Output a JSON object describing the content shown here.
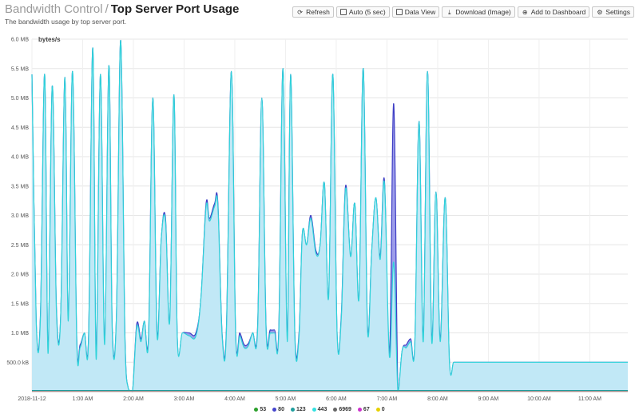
{
  "header": {
    "breadcrumb": "Bandwidth Control",
    "separator": "/",
    "title": "Top Server Port Usage",
    "subtitle": "The bandwidth usage by top server port."
  },
  "toolbar": {
    "refresh": "Refresh",
    "auto": "Auto (5 sec)",
    "data_view": "Data View",
    "download": "Download (Image)",
    "add_dashboard": "Add to Dashboard",
    "settings": "Settings"
  },
  "chart_data": {
    "type": "area",
    "ylabel": "bytes/s",
    "ylim": [
      0,
      6.0
    ],
    "y_unit": "MB",
    "y_ticks": [
      {
        "v": 0.5,
        "label": "500.0 kB"
      },
      {
        "v": 1.0,
        "label": "1.0 MB"
      },
      {
        "v": 1.5,
        "label": "1.5 MB"
      },
      {
        "v": 2.0,
        "label": "2.0 MB"
      },
      {
        "v": 2.5,
        "label": "2.5 MB"
      },
      {
        "v": 3.0,
        "label": "3.0 MB"
      },
      {
        "v": 3.5,
        "label": "3.5 MB"
      },
      {
        "v": 4.0,
        "label": "4.0 MB"
      },
      {
        "v": 4.5,
        "label": "4.5 MB"
      },
      {
        "v": 5.0,
        "label": "5.0 MB"
      },
      {
        "v": 5.5,
        "label": "5.5 MB"
      },
      {
        "v": 6.0,
        "label": "6.0 MB"
      }
    ],
    "xlim": [
      0,
      705
    ],
    "x_ticks": [
      {
        "v": 0,
        "label": "2018-11-12"
      },
      {
        "v": 60,
        "label": "1:00 AM"
      },
      {
        "v": 120,
        "label": "2:00 AM"
      },
      {
        "v": 180,
        "label": "3:00 AM"
      },
      {
        "v": 240,
        "label": "4:00 AM"
      },
      {
        "v": 300,
        "label": "5:00 AM"
      },
      {
        "v": 360,
        "label": "6:00 AM"
      },
      {
        "v": 420,
        "label": "7:00 AM"
      },
      {
        "v": 480,
        "label": "8:00 AM"
      },
      {
        "v": 540,
        "label": "9:00 AM"
      },
      {
        "v": 600,
        "label": "10:00 AM"
      },
      {
        "v": 660,
        "label": "11:00 AM"
      }
    ],
    "series": [
      {
        "name": "53",
        "color": "#2ca02c",
        "x": [
          0,
          705
        ],
        "values": [
          0.01,
          0.01
        ]
      },
      {
        "name": "80",
        "color": "#4444cc",
        "x": [
          0,
          5,
          10,
          15,
          19,
          24,
          29,
          34,
          39,
          43,
          48,
          53,
          57,
          62,
          67,
          72,
          76,
          81,
          86,
          91,
          95,
          100,
          105,
          110,
          114,
          119,
          124,
          129,
          133,
          138,
          143,
          148,
          153,
          158,
          163,
          168,
          172,
          178,
          186,
          194,
          200,
          206,
          210,
          216,
          220,
          225,
          230,
          236,
          241,
          246,
          251,
          256,
          261,
          267,
          272,
          277,
          282,
          287,
          292,
          297,
          302,
          306,
          311,
          316,
          320,
          325,
          330,
          336,
          341,
          346,
          351,
          356,
          361,
          366,
          371,
          377,
          382,
          387,
          392,
          397,
          402,
          407,
          412,
          417,
          423,
          428,
          433,
          438,
          443,
          448,
          453,
          458,
          463,
          468,
          473,
          478,
          483,
          489,
          494,
          499,
          504,
          509,
          514,
          519,
          524,
          529,
          535,
          540,
          545,
          550,
          555,
          560,
          565,
          570,
          575,
          580,
          585,
          591,
          596,
          601,
          606,
          611,
          616,
          621,
          626,
          631,
          637,
          642,
          647,
          652,
          657,
          662,
          667,
          672,
          677,
          682,
          687,
          692,
          697,
          705
        ],
        "values": [
          5.4,
          1.2,
          1.3,
          5.4,
          0.7,
          5.2,
          1.4,
          1.3,
          5.35,
          1.2,
          5.45,
          0.9,
          0.8,
          1.0,
          0.95,
          5.85,
          0.6,
          5.4,
          0.8,
          5.55,
          1.1,
          1.3,
          5.98,
          0.95,
          0.05,
          0.0,
          1.15,
          0.9,
          1.2,
          0.95,
          5.0,
          1.0,
          2.6,
          2.95,
          1.2,
          5.05,
          0.9,
          1.0,
          1.0,
          1.0,
          1.6,
          3.2,
          2.95,
          3.2,
          3.2,
          0.98,
          1.05,
          5.45,
          1.0,
          1.0,
          0.8,
          0.82,
          1.0,
          1.1,
          5.0,
          1.1,
          1.05,
          1.05,
          1.05,
          5.5,
          0.9,
          5.4,
          1.0,
          1.0,
          2.7,
          2.5,
          3.0,
          2.4,
          2.5,
          3.55,
          1.6,
          5.4,
          1.0,
          1.3,
          3.5,
          2.3,
          3.2,
          1.6,
          5.5,
          1.1,
          2.4,
          3.3,
          2.3,
          3.6,
          0.6,
          4.9,
          0.0,
          0.7,
          0.8,
          0.9,
          0.8,
          4.6,
          0.9,
          5.45,
          0.9,
          3.4,
          0.9,
          3.3,
          0.5,
          0.5,
          0.5,
          0.5,
          0.5,
          0.5,
          0.5,
          0.5,
          0.5,
          0.5,
          0.5,
          0.5,
          0.5,
          0.5,
          0.5,
          0.5,
          0.5,
          0.5,
          0.5,
          0.5,
          0.5,
          0.5,
          0.5,
          0.5,
          0.5,
          0.5,
          0.5,
          0.5,
          0.5,
          0.5,
          0.5,
          0.5,
          0.5,
          0.5,
          0.5,
          0.5,
          0.5,
          0.5,
          0.5,
          0.5,
          0.5,
          0.5
        ]
      },
      {
        "name": "123",
        "color": "#1f9e9e",
        "x": [
          0,
          705
        ],
        "values": [
          0.02,
          0.02
        ]
      },
      {
        "name": "443",
        "color": "#33e0e0",
        "x": [
          0,
          5,
          10,
          15,
          19,
          24,
          29,
          34,
          39,
          43,
          48,
          53,
          57,
          62,
          67,
          72,
          76,
          81,
          86,
          91,
          95,
          100,
          105,
          110,
          114,
          119,
          124,
          129,
          133,
          138,
          143,
          148,
          153,
          158,
          163,
          168,
          172,
          178,
          186,
          194,
          200,
          206,
          210,
          216,
          220,
          225,
          230,
          236,
          241,
          246,
          251,
          256,
          261,
          267,
          272,
          277,
          282,
          287,
          292,
          297,
          302,
          306,
          311,
          316,
          320,
          325,
          330,
          336,
          341,
          346,
          351,
          356,
          361,
          366,
          371,
          377,
          382,
          387,
          392,
          397,
          402,
          407,
          412,
          417,
          423,
          428,
          433,
          438,
          443,
          448,
          453,
          458,
          463,
          468,
          473,
          478,
          483,
          489,
          494,
          499,
          504,
          509,
          514,
          519,
          524,
          529,
          535,
          540,
          545,
          550,
          555,
          560,
          565,
          570,
          575,
          580,
          585,
          591,
          596,
          601,
          606,
          611,
          616,
          621,
          626,
          631,
          637,
          642,
          647,
          652,
          657,
          662,
          667,
          672,
          677,
          682,
          687,
          692,
          697,
          705
        ],
        "values": [
          5.4,
          1.2,
          1.25,
          5.4,
          0.65,
          5.2,
          1.35,
          1.3,
          5.35,
          1.2,
          5.45,
          0.85,
          0.75,
          1.0,
          0.9,
          5.85,
          0.55,
          5.4,
          0.8,
          5.55,
          1.05,
          1.3,
          5.98,
          0.9,
          0.05,
          0.0,
          1.1,
          0.85,
          1.2,
          0.9,
          5.0,
          0.95,
          2.6,
          2.9,
          1.2,
          5.05,
          0.9,
          1.0,
          0.95,
          0.95,
          1.6,
          3.15,
          2.9,
          3.15,
          3.15,
          0.95,
          1.0,
          5.45,
          0.95,
          0.95,
          0.75,
          0.78,
          1.0,
          1.05,
          5.0,
          1.05,
          1.0,
          1.0,
          1.0,
          5.5,
          0.85,
          5.4,
          0.95,
          0.95,
          2.7,
          2.5,
          2.95,
          2.35,
          2.5,
          3.55,
          1.6,
          5.4,
          1.0,
          1.25,
          3.45,
          2.3,
          3.2,
          1.6,
          5.5,
          1.05,
          2.4,
          3.3,
          2.25,
          3.55,
          0.6,
          2.2,
          0.0,
          0.7,
          0.75,
          0.85,
          0.8,
          4.6,
          0.85,
          5.45,
          0.85,
          3.4,
          0.85,
          3.3,
          0.5,
          0.5,
          0.5,
          0.5,
          0.5,
          0.5,
          0.5,
          0.5,
          0.5,
          0.5,
          0.5,
          0.5,
          0.5,
          0.5,
          0.5,
          0.5,
          0.5,
          0.5,
          0.5,
          0.5,
          0.5,
          0.5,
          0.5,
          0.5,
          0.5,
          0.5,
          0.5,
          0.5,
          0.5,
          0.5,
          0.5,
          0.5,
          0.5,
          0.5,
          0.5,
          0.5,
          0.5,
          0.5,
          0.5,
          0.5,
          0.5,
          0.5
        ]
      },
      {
        "name": "6969",
        "color": "#666666",
        "x": [
          0,
          705
        ],
        "values": [
          0.005,
          0.005
        ]
      },
      {
        "name": "67",
        "color": "#cc33cc",
        "x": [
          0,
          705
        ],
        "values": [
          0.003,
          0.003
        ]
      },
      {
        "name": "0",
        "color": "#e6d000",
        "x": [
          0,
          705
        ],
        "values": [
          0.002,
          0.002
        ]
      }
    ]
  }
}
